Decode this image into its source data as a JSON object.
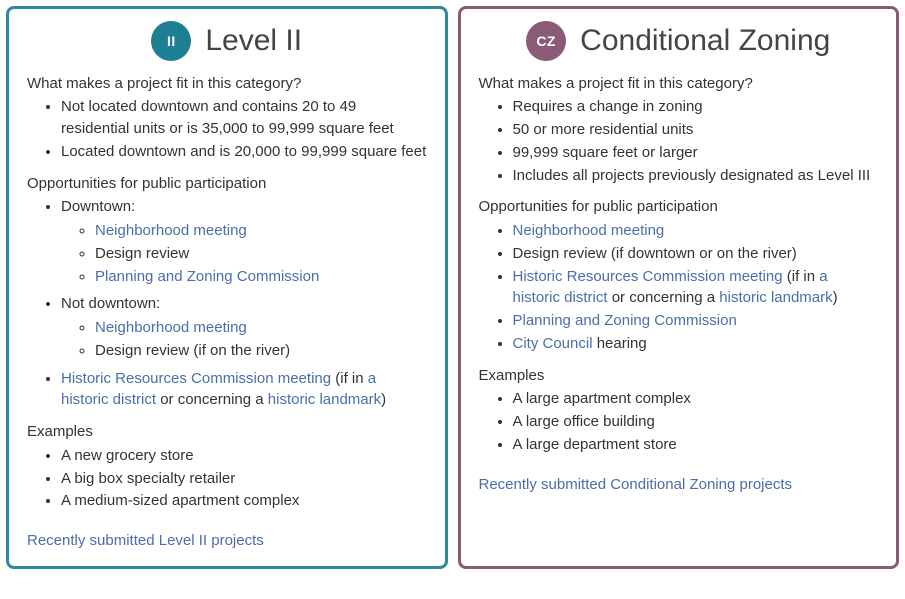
{
  "cards": [
    {
      "badge": "II",
      "badge_bg": "#1c7f94",
      "border": "#2b8a9c",
      "title": "Level II",
      "fit_heading": "What makes a project fit in this category?",
      "fit_items": [
        "Not located downtown and contains 20 to 49 residential units or is 35,000 to 99,999 square feet",
        "Located downtown and is 20,000 to 99,999 square feet"
      ],
      "opp_heading": "Opportunities for public participation",
      "opp_downtown_label": "Downtown:",
      "opp_downtown_items": [
        {
          "text": "Neighborhood meeting",
          "link": true
        },
        {
          "text": "Design review",
          "link": false
        },
        {
          "text": "Planning and Zoning Commission",
          "link": true
        }
      ],
      "opp_notdowntown_label": "Not downtown:",
      "opp_notdowntown_items": [
        {
          "text": "Neighborhood meeting",
          "link": true
        },
        {
          "text": "Design review (if on the river)",
          "link": false
        }
      ],
      "hrc_link": "Historic Resources Commission meeting",
      "hrc_mid1": " (if in ",
      "hrc_link2": "a historic district",
      "hrc_mid2": " or concerning a ",
      "hrc_link3": "historic landmark",
      "hrc_end": ")",
      "examples_heading": "Examples",
      "examples": [
        "A new grocery store",
        "A big box specialty retailer",
        "A medium-sized apartment complex"
      ],
      "recent_link": "Recently submitted Level II projects"
    },
    {
      "badge": "CZ",
      "badge_bg": "#8a5b77",
      "border": "#8a5b77",
      "title": "Conditional Zoning",
      "fit_heading": "What makes a project fit in this category?",
      "fit_items": [
        "Requires a change in zoning",
        "50 or more residential units",
        "99,999 square feet or larger",
        "Includes all projects previously designated as Level III"
      ],
      "opp_heading": "Opportunities for public participation",
      "opp_items": [
        {
          "pre": "",
          "link": "Neighborhood meeting",
          "post": ""
        },
        {
          "pre": "Design review (if downtown or on the river)",
          "link": "",
          "post": ""
        }
      ],
      "hrc_link": "Historic Resources Commission meeting",
      "hrc_mid1": " (if in ",
      "hrc_link2": "a historic district",
      "hrc_mid2": " or concerning a ",
      "hrc_link3": "historic landmark",
      "hrc_end": ")",
      "opp_extra": [
        {
          "link": "Planning and Zoning Commission",
          "post": ""
        },
        {
          "link": "City Council",
          "post": " hearing"
        }
      ],
      "examples_heading": "Examples",
      "examples": [
        "A large apartment complex",
        "A large office building",
        "A large department store"
      ],
      "recent_link": "Recently submitted Conditional Zoning projects"
    }
  ]
}
